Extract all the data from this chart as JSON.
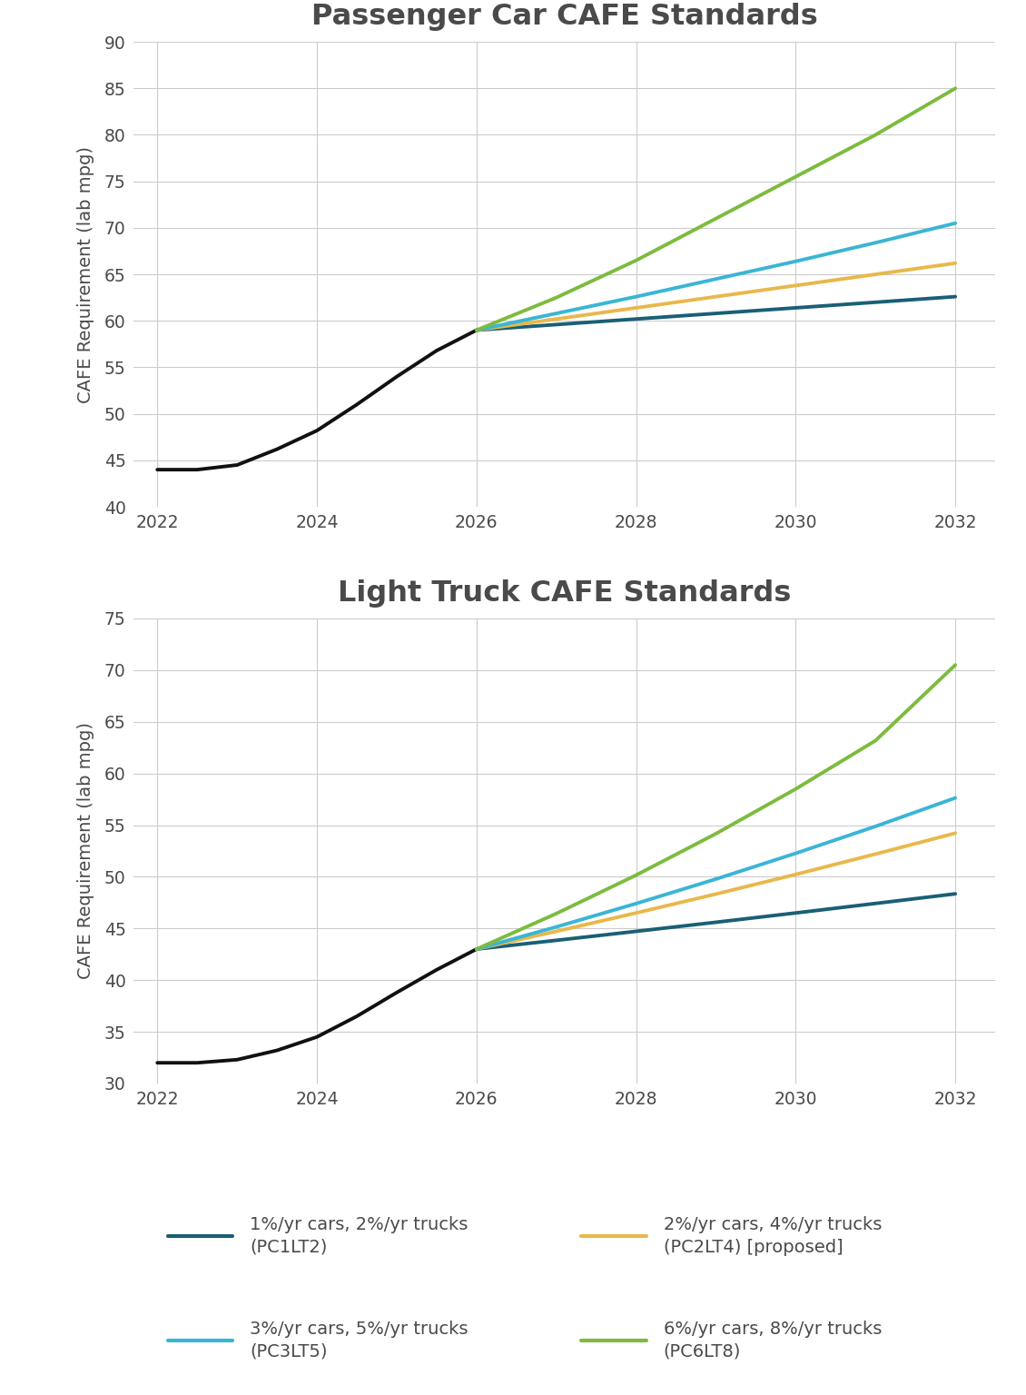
{
  "title1": "Passenger Car CAFE Standards",
  "title2": "Light Truck CAFE Standards",
  "ylabel": "CAFE Requirement (lab mpg)",
  "background_color": "#ffffff",
  "grid_color": "#cccccc",
  "text_color": "#4a4a4a",
  "years_black_pc": [
    2022,
    2022.5,
    2023,
    2023.5,
    2024,
    2024.5,
    2025,
    2025.5,
    2026
  ],
  "pc_black": [
    44.0,
    44.0,
    44.5,
    46.2,
    48.2,
    51.0,
    54.0,
    56.8,
    59.0
  ],
  "years_black_lt": [
    2022,
    2022.5,
    2023,
    2023.5,
    2024,
    2024.5,
    2025,
    2025.5,
    2026
  ],
  "lt_black": [
    32.0,
    32.0,
    32.3,
    33.2,
    34.5,
    36.5,
    38.8,
    41.0,
    43.0
  ],
  "years_scenarios": [
    2026,
    2027,
    2028,
    2029,
    2030,
    2031,
    2032
  ],
  "pc_PC1LT2": [
    59.0,
    59.6,
    60.2,
    60.8,
    61.4,
    62.0,
    62.6
  ],
  "pc_PC2LT4": [
    59.0,
    60.2,
    61.4,
    62.6,
    63.8,
    65.0,
    66.2
  ],
  "pc_PC3LT5": [
    59.0,
    60.8,
    62.6,
    64.5,
    66.4,
    68.4,
    70.5
  ],
  "pc_PC6LT8": [
    59.0,
    62.5,
    66.5,
    71.0,
    75.5,
    80.0,
    85.0
  ],
  "lt_PC1LT2": [
    43.0,
    43.85,
    44.72,
    45.6,
    46.5,
    47.42,
    48.35
  ],
  "lt_PC2LT4": [
    43.0,
    44.72,
    46.5,
    48.33,
    50.23,
    52.2,
    54.22
  ],
  "lt_PC3LT5": [
    43.0,
    45.15,
    47.41,
    49.78,
    52.27,
    54.88,
    57.63
  ],
  "lt_PC6LT8": [
    43.0,
    46.44,
    50.16,
    54.17,
    58.5,
    63.18,
    70.5
  ],
  "color_black": "#111111",
  "color_PC1LT2": "#1a5f75",
  "color_PC2LT4": "#e8b84b",
  "color_PC3LT5": "#3ab5d5",
  "color_PC6LT8": "#7dbb3e",
  "linewidth": 2.8,
  "pc_ylim": [
    40,
    90
  ],
  "pc_yticks": [
    40,
    45,
    50,
    55,
    60,
    65,
    70,
    75,
    80,
    85,
    90
  ],
  "lt_ylim": [
    30,
    75
  ],
  "lt_yticks": [
    30,
    35,
    40,
    45,
    50,
    55,
    60,
    65,
    70,
    75
  ],
  "xlim": [
    2021.7,
    2032.5
  ],
  "xticks": [
    2022,
    2024,
    2026,
    2028,
    2030,
    2032
  ],
  "legend_items": [
    {
      "label": "1%/yr cars, 2%/yr trucks\n(PC1LT2)",
      "color": "#1a5f75"
    },
    {
      "label": "2%/yr cars, 4%/yr trucks\n(PC2LT4) [proposed]",
      "color": "#e8b84b"
    },
    {
      "label": "3%/yr cars, 5%/yr trucks\n(PC3LT5)",
      "color": "#3ab5d5"
    },
    {
      "label": "6%/yr cars, 8%/yr trucks\n(PC6LT8)",
      "color": "#7dbb3e"
    }
  ]
}
